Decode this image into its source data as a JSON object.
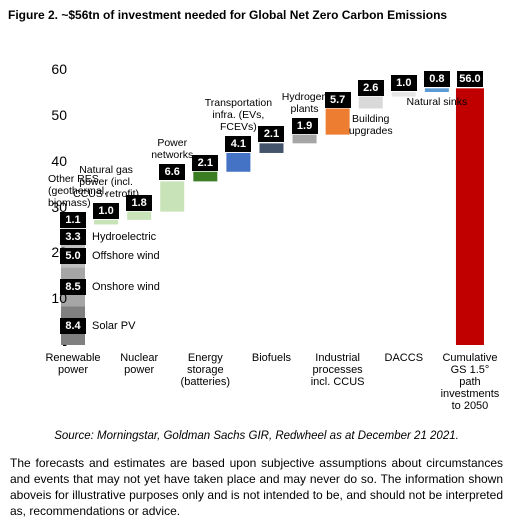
{
  "chart_data": {
    "type": "waterfall",
    "title": "Figure 2. ~$56tn of investment needed for Global Net Zero Carbon Emissions",
    "ylim": [
      0,
      60
    ],
    "yticks": [
      {
        "value": 0,
        "label": "-"
      },
      10,
      20,
      30,
      40,
      50,
      60
    ],
    "stack": {
      "category": "Renewable power",
      "segments": [
        {
          "name": "Solar PV",
          "value": 8.4,
          "color": "#808080"
        },
        {
          "name": "Onshore wind",
          "value": 8.5,
          "color": "#a6a6a6"
        },
        {
          "name": "Offshore wind",
          "value": 5.0,
          "value_label": "5.0",
          "color": "#bfbfbf"
        },
        {
          "name": "Hydroelectric",
          "value": 3.3,
          "color": "#d0d0d0"
        },
        {
          "name": "Other RES (geothermal, biomass)",
          "value": 1.1,
          "color": "#e0e0e0"
        }
      ]
    },
    "steps": [
      {
        "name": "Natural gas power (incl. CCUS retrofit)",
        "value": 1.0,
        "value_label": "1.0",
        "color": "#c9e3b8"
      },
      {
        "name": "Nuclear power",
        "value": 1.8,
        "color": "#c9e3b8"
      },
      {
        "name": "Power networks",
        "value": 6.6,
        "color": "#c9e3b8"
      },
      {
        "name": "Energy storage (batteries)",
        "value": 2.1,
        "color": "#3b7d23"
      },
      {
        "name": "Transportation infra. (EVs, FCEVs)",
        "value": 4.1,
        "color": "#4472c4"
      },
      {
        "name": "Biofuels",
        "value": 2.1,
        "color": "#44546a"
      },
      {
        "name": "Hydrogen plants",
        "value": 1.9,
        "color": "#a6a6a6"
      },
      {
        "name": "Industrial processes incl. CCUS",
        "value": 5.7,
        "color": "#ed7d31"
      },
      {
        "name": "Building upgrades",
        "value": 2.6,
        "color": "#d9d9d9"
      },
      {
        "name": "DACCS",
        "value": 1.0,
        "value_label": "1.0",
        "color": "#e7e6e6"
      },
      {
        "name": "Natural sinks",
        "value": 0.8,
        "color": "#5b9bd5"
      },
      {
        "name": "Cumulative GS 1.5° path investments to 2050",
        "value": 56.0,
        "value_label": "56.0",
        "color": "#c00000",
        "total": true
      }
    ],
    "source": "Source: Morningstar, Goldman Sachs GIR, Redwheel as at December 21 2021."
  },
  "disclaimer": "The forecasts and estimates are based upon subjective assumptions about circumstances and events that may not yet have taken place and may never do so. The information shown aboveis for illustrative purposes only and is not intended to be, and should not be interpreted as, recommendations or advice."
}
